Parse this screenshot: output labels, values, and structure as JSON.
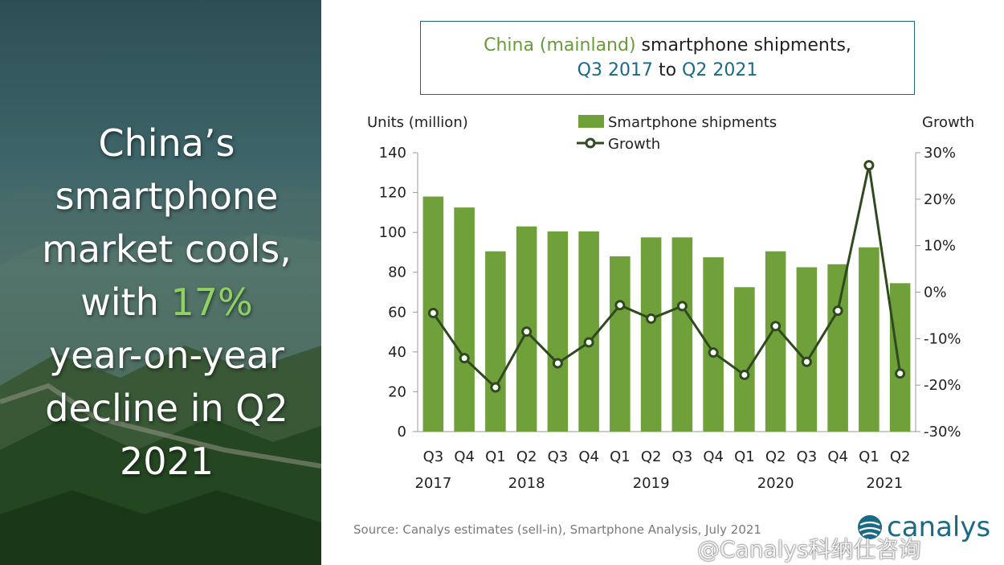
{
  "headline": {
    "line1": "China’s",
    "line2": "smartphone",
    "line3": "market cools,",
    "line4_prefix": "with ",
    "line4_highlight": "17%",
    "line5": "year-on-year",
    "line6": "decline in Q2",
    "line7": "2021"
  },
  "colors": {
    "bar": "#70a03a",
    "line": "#2e4a1e",
    "title_green": "#6b9a3b",
    "title_blue": "#1b6a85",
    "highlight": "#8fd162",
    "brand": "#1b6a85"
  },
  "chart_data": {
    "type": "bar",
    "title_part1": "China (mainland)",
    "title_part2": " smartphone shipments,",
    "title_part3": "Q3 2017",
    "title_part4": " to ",
    "title_part5": "Q2 2021",
    "ylabel_left": "Units (million)",
    "ylabel_right": "Growth",
    "categories": [
      "Q3",
      "Q4",
      "Q1",
      "Q2",
      "Q3",
      "Q4",
      "Q1",
      "Q2",
      "Q3",
      "Q4",
      "Q1",
      "Q2",
      "Q3",
      "Q4",
      "Q1",
      "Q2"
    ],
    "year_labels": [
      {
        "label": "2017",
        "after_index": 0
      },
      {
        "label": "2018",
        "after_index": 3
      },
      {
        "label": "2019",
        "after_index": 7
      },
      {
        "label": "2020",
        "after_index": 11
      },
      {
        "label": "2021",
        "after_index": 14.5
      }
    ],
    "ylim": [
      0,
      140
    ],
    "yticks": [
      0,
      20,
      40,
      60,
      80,
      100,
      120,
      140
    ],
    "y2lim": [
      -30,
      30
    ],
    "y2ticks": [
      -30,
      -20,
      -10,
      0,
      10,
      20,
      30
    ],
    "y2tick_labels": [
      "-30%",
      "-20%",
      "-10%",
      "0%",
      "10%",
      "20%",
      "30%"
    ],
    "series": [
      {
        "name": "Smartphone shipments",
        "type": "bar",
        "axis": "left",
        "values": [
          118,
          112.5,
          90.5,
          103,
          100.5,
          100.5,
          88,
          97.5,
          97.5,
          87.5,
          72.5,
          90.5,
          82.5,
          84,
          92.5,
          74.5
        ]
      },
      {
        "name": "Growth",
        "type": "line",
        "axis": "right",
        "values": [
          -4.5,
          -14.2,
          -20.5,
          -8.5,
          -15.3,
          -10.8,
          -2.8,
          -5.7,
          -3,
          -13,
          -17.8,
          -7.3,
          -15,
          -4,
          27.3,
          -17.5
        ]
      }
    ]
  },
  "source": "Source: Canalys estimates (sell-in), Smartphone Analysis, July 2021",
  "logo": {
    "text": "canalys"
  },
  "watermark": "@Canalys科纳仕咨询"
}
